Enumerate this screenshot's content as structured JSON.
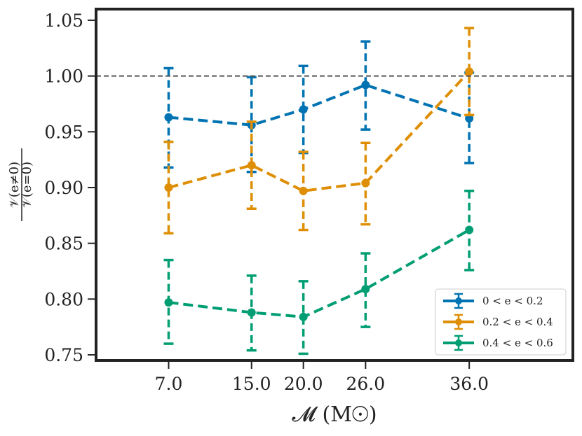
{
  "chart_data": {
    "type": "line",
    "title": "",
    "xlabel": "𝓜 (M☉)",
    "ylabel": "𝒱(e≠0) / 𝒱(e=0)",
    "ylabel_numerator": "𝒱(e≠0)",
    "ylabel_denominator": "𝒱(e=0)",
    "x": [
      7.0,
      15.0,
      20.0,
      26.0,
      36.0
    ],
    "x_tick_labels": [
      "7.0",
      "15.0",
      "20.0",
      "26.0",
      "36.0"
    ],
    "xlim": [
      0,
      46
    ],
    "ylim": [
      0.745,
      1.06
    ],
    "y_ticks": [
      0.75,
      0.8,
      0.85,
      0.9,
      0.95,
      1.0,
      1.05
    ],
    "y_tick_labels": [
      "0.75",
      "0.80",
      "0.85",
      "0.90",
      "0.95",
      "1.00",
      "1.05"
    ],
    "reference_line": 1.0,
    "legend_position": "lower-right",
    "series": [
      {
        "name": "0 < e < 0.2",
        "color": "#0173b2",
        "values": [
          0.963,
          0.956,
          0.97,
          0.992,
          0.962
        ],
        "err_lower": [
          0.918,
          0.914,
          0.931,
          0.952,
          0.922
        ],
        "err_upper": [
          1.007,
          0.999,
          1.009,
          1.031,
          1.003
        ]
      },
      {
        "name": "0.2 < e < 0.4",
        "color": "#de8f05",
        "values": [
          0.9,
          0.92,
          0.897,
          0.904,
          1.004
        ],
        "err_lower": [
          0.859,
          0.881,
          0.862,
          0.867,
          0.965
        ],
        "err_upper": [
          0.941,
          0.959,
          0.932,
          0.94,
          1.043
        ]
      },
      {
        "name": "0.4 < e < 0.6",
        "color": "#029e73",
        "values": [
          0.797,
          0.788,
          0.784,
          0.809,
          0.862
        ],
        "err_lower": [
          0.76,
          0.754,
          0.751,
          0.775,
          0.826
        ],
        "err_upper": [
          0.835,
          0.821,
          0.816,
          0.841,
          0.897
        ]
      }
    ]
  }
}
